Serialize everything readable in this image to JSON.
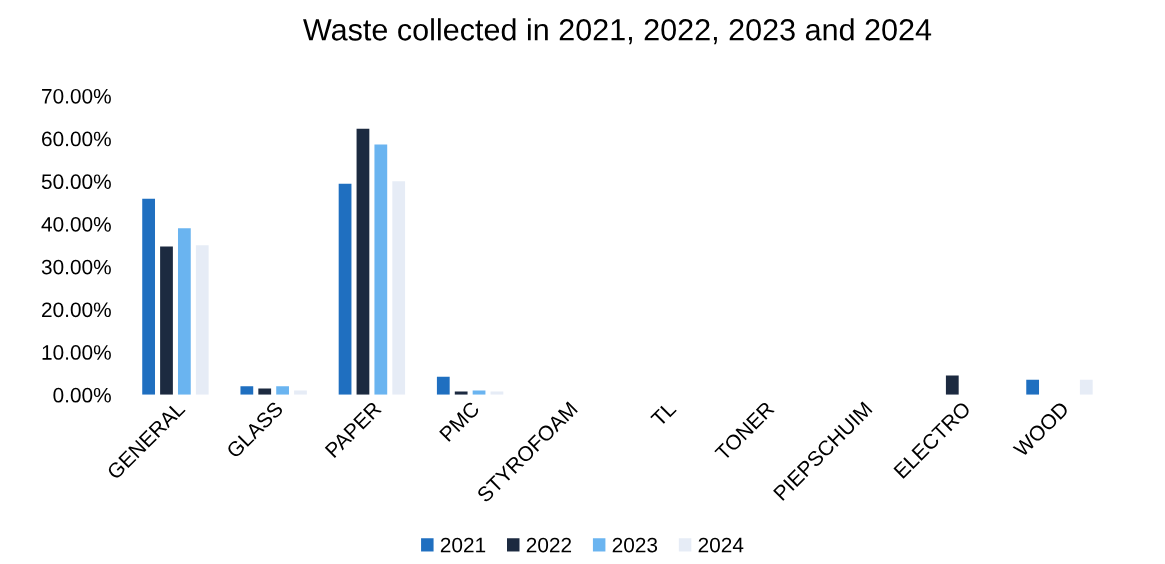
{
  "chart_data": {
    "type": "bar",
    "title": "Waste collected in 2021, 2022, 2023 and 2024",
    "categories": [
      "GENERAL",
      "GLASS",
      "PAPER",
      "PMC",
      "STYROFOAM",
      "TL",
      "TONER",
      "PIEPSCHUIM",
      "ELECTRO",
      "WOOD"
    ],
    "series": [
      {
        "name": "2021",
        "color": "#1f6fc0",
        "values": [
          45.9,
          2,
          49.4,
          4.2,
          0,
          0,
          0,
          0,
          0,
          3.5
        ]
      },
      {
        "name": "2022",
        "color": "#1c2a40",
        "values": [
          34.7,
          1.5,
          62.3,
          0.8,
          0,
          0,
          0,
          0,
          4.5,
          0
        ]
      },
      {
        "name": "2023",
        "color": "#6ab4f0",
        "values": [
          39,
          2,
          58.6,
          1,
          0,
          0,
          0,
          0,
          0,
          0
        ]
      },
      {
        "name": "2024",
        "color": "#e6ecf6",
        "values": [
          35,
          1,
          50,
          0.8,
          0,
          0,
          0,
          0,
          0,
          3.5
        ]
      }
    ],
    "ylim": [
      0,
      70
    ],
    "yticks": [
      {
        "value": 0,
        "label": "0.00%"
      },
      {
        "value": 10,
        "label": "10.00%"
      },
      {
        "value": 20,
        "label": "20.00%"
      },
      {
        "value": 30,
        "label": "30.00%"
      },
      {
        "value": 40,
        "label": "40.00%"
      },
      {
        "value": 50,
        "label": "50.00%"
      },
      {
        "value": 60,
        "label": "60.00%"
      },
      {
        "value": 70,
        "label": "70.00%"
      }
    ],
    "grid": false,
    "legend": "bottom"
  }
}
